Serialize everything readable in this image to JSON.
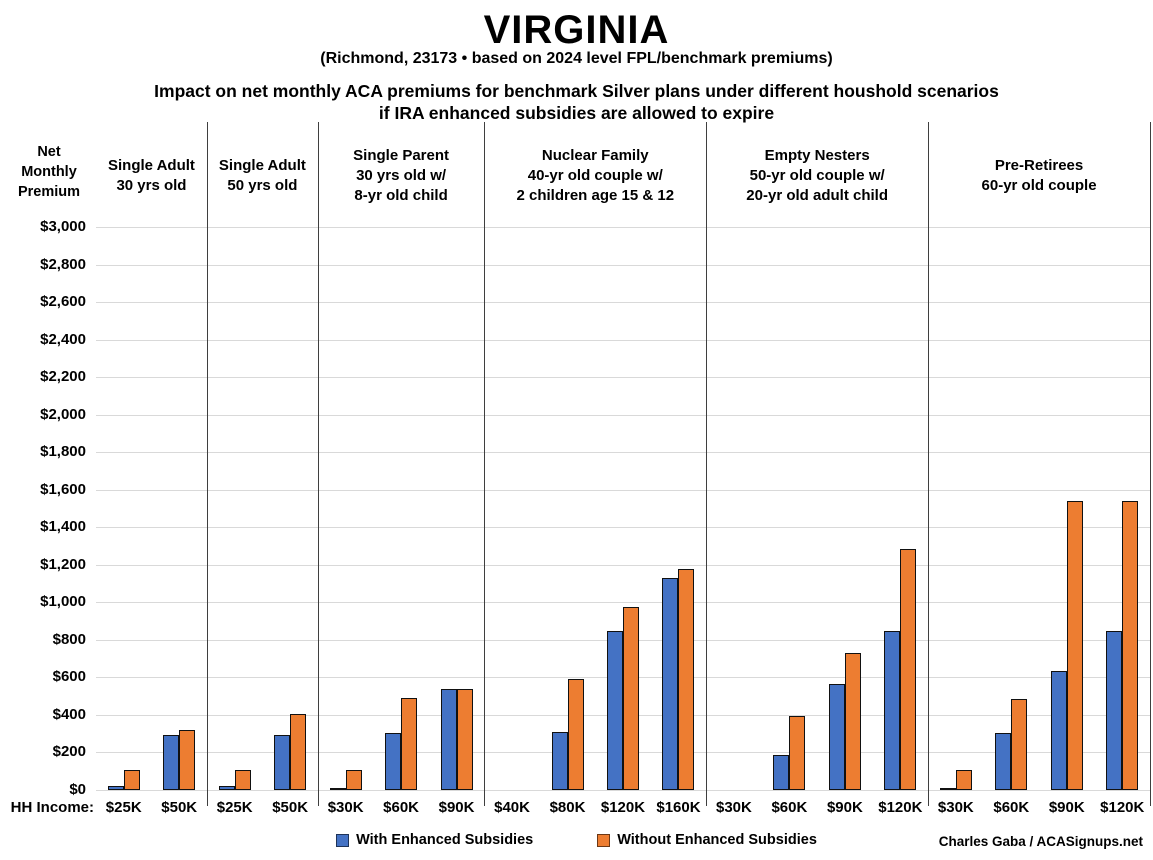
{
  "header": {
    "title": "VIRGINIA",
    "subtitle": "(Richmond, 23173 • based on 2024 level FPL/benchmark premiums)",
    "heading_line1": "Impact on net monthly ACA premiums for benchmark Silver plans under different houshold scenarios",
    "heading_line2": "if IRA enhanced subsidies are allowed to expire"
  },
  "axis": {
    "y_title_lines": [
      "Net",
      "Monthly",
      "Premium"
    ],
    "hh_income_label": "HH Income:"
  },
  "credit": "Charles Gaba / ACASignups.net",
  "colors": {
    "with_enhanced": "#4472C4",
    "without_enhanced": "#ED7D31",
    "bar_border": "#111111",
    "gridline": "#d9d9d9",
    "separator": "#3f3f3f"
  },
  "chart_data": {
    "type": "bar",
    "title": "Impact on net monthly ACA premiums for benchmark Silver plans under different houshold scenarios if IRA enhanced subsidies are allowed to expire",
    "ylabel": "Net Monthly Premium",
    "xlabel": "HH Income",
    "ylim": [
      0,
      3000
    ],
    "ytick_step": 200,
    "ytick_labels": [
      "$0",
      "$200",
      "$400",
      "$600",
      "$800",
      "$1,000",
      "$1,200",
      "$1,400",
      "$1,600",
      "$1,800",
      "$2,000",
      "$2,200",
      "$2,400",
      "$2,600",
      "$2,800",
      "$3,000"
    ],
    "grid": true,
    "legend_position": "bottom",
    "series": [
      {
        "name": "With Enhanced Subsidies",
        "color": "#4472C4"
      },
      {
        "name": "Without Enhanced Subsidies",
        "color": "#ED7D31"
      }
    ],
    "groups": [
      {
        "header_lines": [
          "Single Adult",
          "30 yrs old"
        ],
        "categories": [
          {
            "income": "$25K",
            "with_enhanced": 20,
            "without_enhanced": 105
          },
          {
            "income": "$50K",
            "with_enhanced": 295,
            "without_enhanced": 320
          }
        ]
      },
      {
        "header_lines": [
          "Single Adult",
          "50 yrs old"
        ],
        "categories": [
          {
            "income": "$25K",
            "with_enhanced": 20,
            "without_enhanced": 105
          },
          {
            "income": "$50K",
            "with_enhanced": 295,
            "without_enhanced": 405
          }
        ]
      },
      {
        "header_lines": [
          "Single Parent",
          "30 yrs old w/",
          "8-yr old child"
        ],
        "categories": [
          {
            "income": "$30K",
            "with_enhanced": 5,
            "without_enhanced": 105
          },
          {
            "income": "$60K",
            "with_enhanced": 305,
            "without_enhanced": 490
          },
          {
            "income": "$90K",
            "with_enhanced": 540,
            "without_enhanced": 540
          }
        ]
      },
      {
        "header_lines": [
          "Nuclear Family",
          "40-yr old couple w/",
          "2 children age 15 & 12"
        ],
        "categories": [
          {
            "income": "$40K",
            "with_enhanced": 0,
            "without_enhanced": 0
          },
          {
            "income": "$80K",
            "with_enhanced": 310,
            "without_enhanced": 590
          },
          {
            "income": "$120K",
            "with_enhanced": 845,
            "without_enhanced": 975
          },
          {
            "income": "$160K",
            "with_enhanced": 1130,
            "without_enhanced": 1180
          }
        ]
      },
      {
        "header_lines": [
          "Empty Nesters",
          "50-yr old couple w/",
          "20-yr old adult child"
        ],
        "categories": [
          {
            "income": "$30K",
            "with_enhanced": 0,
            "without_enhanced": 0
          },
          {
            "income": "$60K",
            "with_enhanced": 185,
            "without_enhanced": 395
          },
          {
            "income": "$90K",
            "with_enhanced": 565,
            "without_enhanced": 730
          },
          {
            "income": "$120K",
            "with_enhanced": 845,
            "without_enhanced": 1285
          }
        ]
      },
      {
        "header_lines": [
          "Pre-Retirees",
          "60-yr old couple"
        ],
        "categories": [
          {
            "income": "$30K",
            "with_enhanced": 5,
            "without_enhanced": 105
          },
          {
            "income": "$60K",
            "with_enhanced": 305,
            "without_enhanced": 485
          },
          {
            "income": "$90K",
            "with_enhanced": 635,
            "without_enhanced": 1540
          },
          {
            "income": "$120K",
            "with_enhanced": 845,
            "without_enhanced": 1540
          }
        ]
      }
    ]
  }
}
